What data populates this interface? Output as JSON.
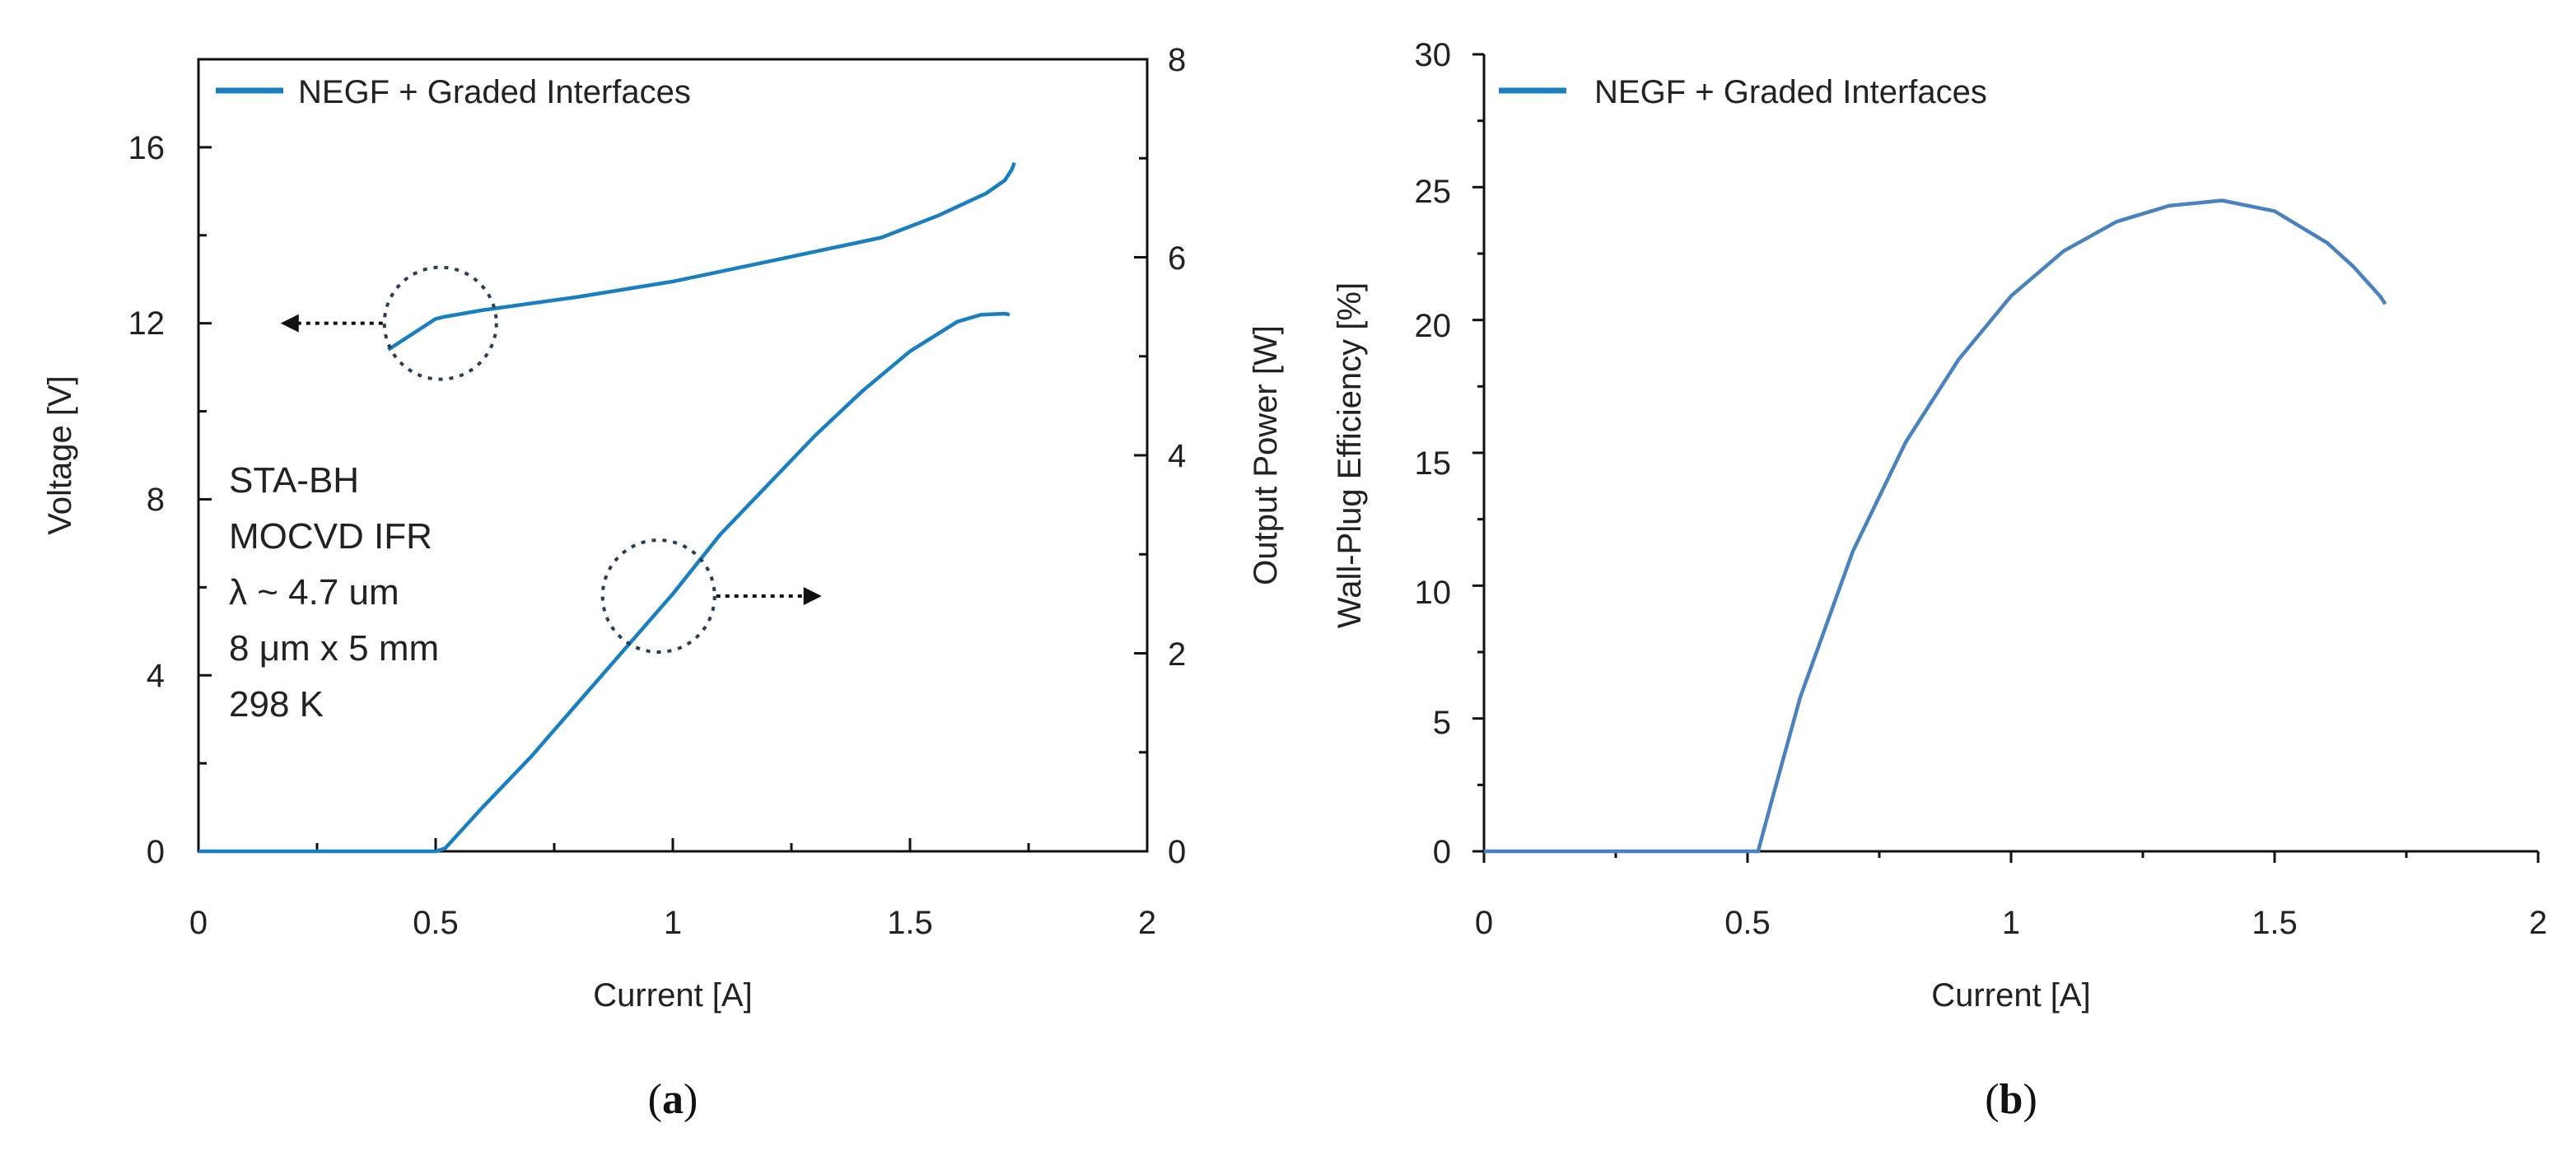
{
  "chart_data": [
    {
      "panel": "a",
      "type": "line",
      "panel_label_open": "(",
      "panel_label_letter": "a",
      "panel_label_close": ")",
      "xlabel": "Current [A]",
      "ylabel_left": "Voltage [V]",
      "ylabel_right": "Output Power [W]",
      "xlim": [
        0,
        2
      ],
      "ylim_left": [
        0,
        18
      ],
      "ylim_right": [
        0,
        8
      ],
      "x_ticks": [
        "0",
        "0.5",
        "1",
        "1.5",
        "2"
      ],
      "y_ticks_left": [
        "0",
        "4",
        "8",
        "12",
        "16"
      ],
      "y_ticks_right": [
        "0",
        "2",
        "4",
        "6",
        "8"
      ],
      "legend": {
        "label": "NEGF + Graded Interfaces",
        "position": "top-left"
      },
      "annotation_lines": [
        "STA-BH",
        "MOCVD IFR",
        "λ ~ 4.7 um",
        "8 μm x 5 mm",
        "298 K"
      ],
      "color": "#1a7fc1",
      "series": [
        {
          "name": "Voltage",
          "axis": "left",
          "x": [
            0.4,
            0.45,
            0.5,
            0.52,
            0.6,
            0.8,
            1.0,
            1.2,
            1.44,
            1.56,
            1.62,
            1.66,
            1.7,
            1.715,
            1.72
          ],
          "y": [
            11.4,
            11.75,
            12.1,
            12.15,
            12.3,
            12.6,
            12.95,
            13.4,
            13.95,
            14.45,
            14.75,
            14.95,
            15.25,
            15.5,
            15.65
          ]
        },
        {
          "name": "Output Power",
          "axis": "right",
          "x": [
            0,
            0.5,
            0.52,
            0.6,
            0.7,
            0.8,
            0.9,
            1.0,
            1.1,
            1.2,
            1.3,
            1.4,
            1.5,
            1.55,
            1.6,
            1.65,
            1.7,
            1.71
          ],
          "y": [
            0,
            0,
            0.03,
            0.45,
            0.95,
            1.5,
            2.05,
            2.6,
            3.2,
            3.7,
            4.2,
            4.65,
            5.05,
            5.2,
            5.35,
            5.42,
            5.43,
            5.42
          ]
        }
      ],
      "markers": [
        {
          "target": "Voltage",
          "direction": "left",
          "center_x": 0.51,
          "center_y": 12.0
        },
        {
          "target": "Output Power",
          "direction": "right",
          "center_x": 0.97,
          "center_y": 5.8
        }
      ]
    },
    {
      "panel": "b",
      "type": "line",
      "panel_label_open": "(",
      "panel_label_letter": "b",
      "panel_label_close": ")",
      "xlabel": "Current [A]",
      "ylabel": "Wall-Plug Efficiency [%]",
      "xlim": [
        0,
        2
      ],
      "ylim": [
        0,
        30
      ],
      "x_ticks": [
        "0",
        "0.5",
        "1",
        "1.5",
        "2"
      ],
      "y_ticks": [
        "0",
        "5",
        "10",
        "15",
        "20",
        "25",
        "30"
      ],
      "legend": {
        "label": "NEGF + Graded Interfaces",
        "position": "top-left"
      },
      "color": "#4a82bf",
      "series": [
        {
          "name": "Wall-Plug Efficiency",
          "x": [
            0,
            0.52,
            0.55,
            0.6,
            0.7,
            0.8,
            0.9,
            1.0,
            1.1,
            1.2,
            1.3,
            1.4,
            1.5,
            1.6,
            1.65,
            1.7,
            1.71
          ],
          "y": [
            0,
            0,
            2.2,
            5.8,
            11.3,
            15.4,
            18.5,
            20.9,
            22.6,
            23.7,
            24.3,
            24.5,
            24.1,
            22.9,
            22.0,
            20.9,
            20.6
          ]
        }
      ]
    }
  ]
}
